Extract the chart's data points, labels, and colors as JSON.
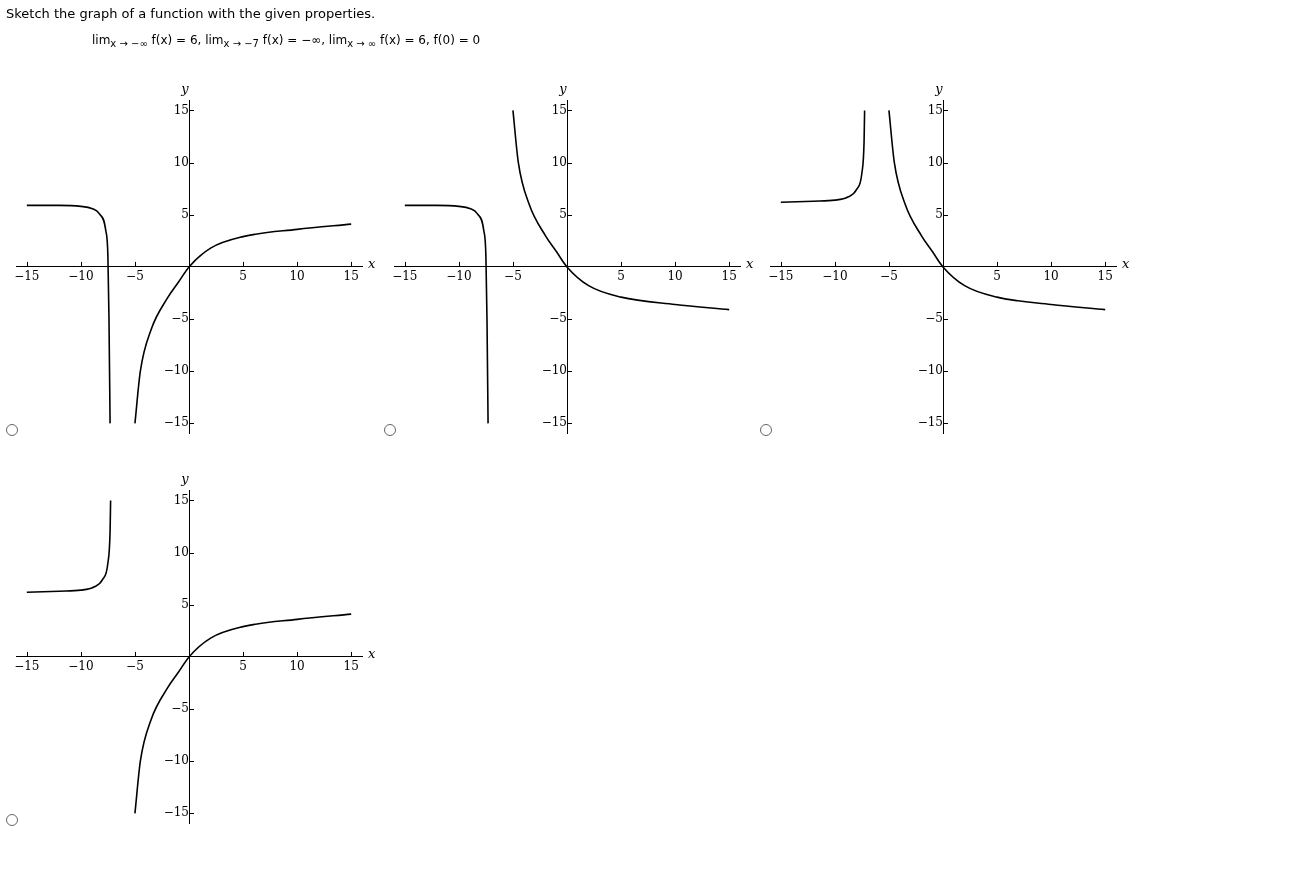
{
  "chart_data": [
    {
      "type": "line",
      "title": "Sketch the graph of a function with the given properties.",
      "subtitle": "lim$_{x → −∞}$ f(x) = 6, lim$_{x → −7}$ f(x) = −∞, lim$_{x → ∞}$ f(x) = 6, f(0) = 0",
      "xlabel": "x",
      "ylabel": "y",
      "xlim": [
        -16,
        16
      ],
      "ylim": [
        -16,
        16
      ],
      "xticks": [
        -15,
        -10,
        -5,
        5,
        10,
        15
      ],
      "yticks": [
        -15,
        -10,
        -5,
        5,
        10,
        15
      ],
      "marker": "none",
      "series": [
        {
          "color": "#000000",
          "x": [
            -15,
            -12,
            -10,
            -9,
            -8.3,
            -7.7,
            -7.5,
            -7.4,
            -7.3
          ],
          "values": [
            5.9,
            5.9,
            5.8,
            5.6,
            5.1,
            3.5,
            1,
            -5,
            -15
          ]
        },
        {
          "color": "#000000",
          "x": [
            -5,
            -4.5,
            -3.5,
            -2,
            -1,
            0,
            2,
            5,
            10,
            15
          ],
          "values": [
            -15,
            -10,
            -6,
            -3,
            -1.5,
            0,
            1.8,
            2.9,
            3.6,
            4.1
          ]
        }
      ]
    },
    {
      "type": "line",
      "xlabel": "x",
      "ylabel": "y",
      "xlim": [
        -16,
        16
      ],
      "ylim": [
        -16,
        16
      ],
      "xticks": [
        -15,
        -10,
        -5,
        5,
        10,
        15
      ],
      "yticks": [
        -15,
        -10,
        -5,
        5,
        10,
        15
      ],
      "marker": "none",
      "series": [
        {
          "color": "#000000",
          "x": [
            -15,
            -12,
            -10,
            -9,
            -8.3,
            -7.7,
            -7.5,
            -7.4,
            -7.3
          ],
          "values": [
            5.9,
            5.9,
            5.8,
            5.6,
            5.1,
            3.5,
            1,
            -5,
            -15
          ]
        },
        {
          "color": "#000000",
          "x": [
            -5,
            -4.5,
            -3.5,
            -2,
            -1,
            0,
            2,
            5,
            10,
            15
          ],
          "values": [
            15,
            10,
            6,
            3,
            1.5,
            0,
            -1.8,
            -2.9,
            -3.6,
            -4.1
          ]
        }
      ]
    },
    {
      "type": "line",
      "xlabel": "x",
      "ylabel": "y",
      "xlim": [
        -16,
        16
      ],
      "ylim": [
        -16,
        16
      ],
      "xticks": [
        -15,
        -10,
        -5,
        5,
        10,
        15
      ],
      "yticks": [
        -15,
        -10,
        -5,
        5,
        10,
        15
      ],
      "marker": "none",
      "series": [
        {
          "color": "#000000",
          "x": [
            -15,
            -12,
            -10,
            -8.8,
            -8,
            -7.5,
            -7.3,
            -7.25
          ],
          "values": [
            6.2,
            6.3,
            6.4,
            6.7,
            7.4,
            9,
            12,
            15
          ]
        },
        {
          "color": "#000000",
          "x": [
            -5,
            -4.5,
            -3.5,
            -2,
            -1,
            0,
            2,
            5,
            10,
            15
          ],
          "values": [
            15,
            10,
            6,
            3,
            1.5,
            0,
            -1.8,
            -2.9,
            -3.6,
            -4.1
          ]
        }
      ]
    },
    {
      "type": "line",
      "xlabel": "x",
      "ylabel": "y",
      "xlim": [
        -16,
        16
      ],
      "ylim": [
        -16,
        16
      ],
      "xticks": [
        -15,
        -10,
        -5,
        5,
        10,
        15
      ],
      "yticks": [
        -15,
        -10,
        -5,
        5,
        10,
        15
      ],
      "marker": "none",
      "series": [
        {
          "color": "#000000",
          "x": [
            -15,
            -12,
            -10,
            -8.8,
            -8,
            -7.5,
            -7.3,
            -7.25
          ],
          "values": [
            6.2,
            6.3,
            6.4,
            6.7,
            7.4,
            9,
            12,
            15
          ]
        },
        {
          "color": "#000000",
          "x": [
            -5,
            -4.5,
            -3.5,
            -2,
            -1,
            0,
            2,
            5,
            10,
            15
          ],
          "values": [
            -15,
            -10,
            -6,
            -3,
            -1.5,
            0,
            1.8,
            2.9,
            3.6,
            4.1
          ]
        }
      ]
    }
  ]
}
